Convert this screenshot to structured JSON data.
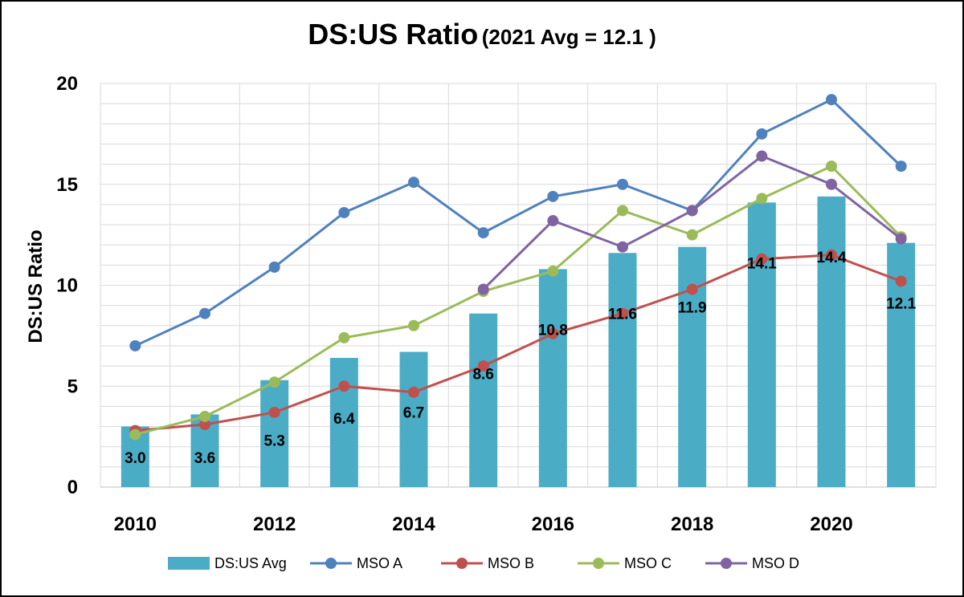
{
  "chart_data": {
    "type": "bar",
    "title": "DS:US Ratio",
    "subtitle": "(2021 Avg = 12.1 )",
    "ylabel": "DS:US Ratio",
    "xlabel": "",
    "ylim": [
      0,
      20
    ],
    "yticks": [
      0,
      5,
      10,
      15,
      20
    ],
    "xtick_labels": [
      "2010",
      "2012",
      "2014",
      "2016",
      "2018",
      "2020"
    ],
    "categories": [
      "2010",
      "2011",
      "2012",
      "2013",
      "2014",
      "2015",
      "2016",
      "2017",
      "2018",
      "2019",
      "2020",
      "2021"
    ],
    "grid": true,
    "legend_position": "bottom",
    "bar_series": {
      "name": "DS:US Avg",
      "color": "#4BACC6",
      "values": [
        3.0,
        3.6,
        5.3,
        6.4,
        6.7,
        8.6,
        10.8,
        11.6,
        11.9,
        14.1,
        14.4,
        12.1
      ],
      "labels": [
        "3.0",
        "3.6",
        "5.3",
        "6.4",
        "6.7",
        "8.6",
        "10.8",
        "11.6",
        "11.9",
        "14.1",
        "14.4",
        "12.1"
      ]
    },
    "series": [
      {
        "name": "MSO A",
        "type": "line",
        "color": "#4F81BD",
        "values": [
          7.0,
          8.6,
          10.9,
          13.6,
          15.1,
          12.6,
          14.4,
          15.0,
          13.7,
          17.5,
          19.2,
          15.9
        ]
      },
      {
        "name": "MSO B",
        "type": "line",
        "color": "#C0504D",
        "values": [
          2.8,
          3.1,
          3.7,
          5.0,
          4.7,
          6.0,
          7.6,
          8.6,
          9.8,
          11.3,
          11.5,
          10.2
        ]
      },
      {
        "name": "MSO C",
        "type": "line",
        "color": "#9BBB59",
        "values": [
          2.6,
          3.5,
          5.2,
          7.4,
          8.0,
          9.7,
          10.7,
          13.7,
          12.5,
          14.3,
          15.9,
          12.4
        ]
      },
      {
        "name": "MSO D",
        "type": "line",
        "color": "#8064A2",
        "values": [
          null,
          null,
          null,
          null,
          null,
          9.8,
          13.2,
          11.9,
          13.7,
          16.4,
          15.0,
          12.3
        ]
      }
    ]
  }
}
